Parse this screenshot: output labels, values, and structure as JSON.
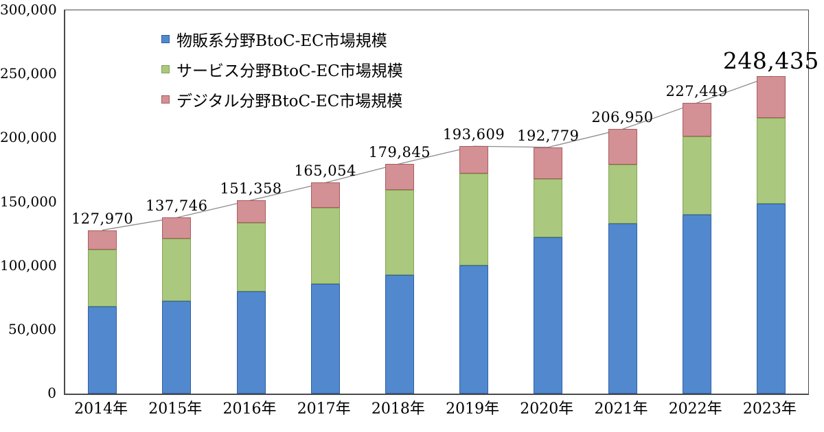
{
  "chart_data": {
    "type": "bar",
    "variant": "stacked-column-with-total-line",
    "title": "",
    "categories": [
      "2014年",
      "2015年",
      "2016年",
      "2017年",
      "2018年",
      "2019年",
      "2020年",
      "2021年",
      "2022年",
      "2023年"
    ],
    "series": [
      {
        "name": "物販系分野BtoC-EC市場規模",
        "color": "#5289CE",
        "border_color": "#2F5EA8",
        "values": [
          68043,
          72398,
          80043,
          86008,
          92992,
          100515,
          122333,
          132865,
          139997,
          148383
        ]
      },
      {
        "name": "サービス分野BtoC-EC市場規模",
        "color": "#AAC87E",
        "border_color": "#83A553",
        "values": [
          44816,
          49014,
          53532,
          59568,
          66471,
          71672,
          45832,
          46424,
          61477,
          67442
        ]
      },
      {
        "name": "デジタル分野BtoC-EC市場規模",
        "color": "#D39095",
        "border_color": "#A95C60",
        "values": [
          15111,
          16334,
          17783,
          19478,
          20382,
          21422,
          24614,
          27661,
          25975,
          32610
        ]
      }
    ],
    "total_labels": [
      "127,970",
      "137,746",
      "151,358",
      "165,054",
      "179,845",
      "193,609",
      "192,779",
      "206,950",
      "227,449",
      "248,435"
    ],
    "emphasized_label_index": 9,
    "y_axis": {
      "min": 0,
      "max": 300000,
      "tick_step": 50000,
      "tick_labels": [
        "0",
        "50,000",
        "100,000",
        "150,000",
        "200,000",
        "250,000",
        "300,000"
      ]
    },
    "grid": false,
    "legend_position": "top-left-inside",
    "total_line_color": "#8C8C8C",
    "text_color": "#000000",
    "background": "#FFFFFF"
  }
}
